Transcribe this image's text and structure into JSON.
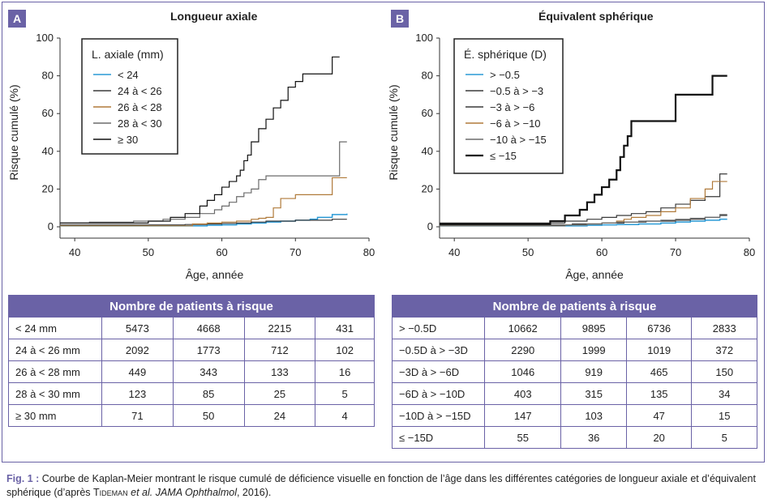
{
  "panels": [
    {
      "letter": "A",
      "title": "Longueur axiale",
      "legend_title": "L. axiale (mm)",
      "table_header": "Nombre de patients à risque",
      "table_rows": [
        {
          "label": "< 24 mm",
          "values": [
            "5473",
            "4668",
            "2215",
            "431"
          ]
        },
        {
          "label": "24 à < 26 mm",
          "values": [
            "2092",
            "1773",
            "712",
            "102"
          ]
        },
        {
          "label": "26 à < 28 mm",
          "values": [
            "449",
            "343",
            "133",
            "16"
          ]
        },
        {
          "label": "28 à < 30 mm",
          "values": [
            "123",
            "85",
            "25",
            "5"
          ]
        },
        {
          "label": "≥ 30 mm",
          "values": [
            "71",
            "50",
            "24",
            "4"
          ]
        }
      ]
    },
    {
      "letter": "B",
      "title": "Équivalent sphérique",
      "legend_title": "É. sphérique (D)",
      "table_header": "Nombre de patients à risque",
      "table_rows": [
        {
          "label": "> −0.5D",
          "values": [
            "10662",
            "9895",
            "6736",
            "2833"
          ]
        },
        {
          "label": "−0.5D à > −3D",
          "values": [
            "2290",
            "1999",
            "1019",
            "372"
          ]
        },
        {
          "label": "−3D à > −6D",
          "values": [
            "1046",
            "919",
            "465",
            "150"
          ]
        },
        {
          "label": "−6D à > −10D",
          "values": [
            "403",
            "315",
            "135",
            "34"
          ]
        },
        {
          "label": "−10D à > −15D",
          "values": [
            "147",
            "103",
            "47",
            "15"
          ]
        },
        {
          "label": "≤ −15D",
          "values": [
            "55",
            "36",
            "20",
            "5"
          ]
        }
      ]
    }
  ],
  "caption": {
    "fig_label": "Fig. 1 :",
    "text_1": " Courbe de Kaplan-Meier montrant le risque cumulé de déficience visuelle en fonction de l’âge dans les différentes catégories de longueur axiale et d’équivalent sphérique (d’après ",
    "author": "Tideman",
    "etal": " et al. JAMA Ophthalmol",
    "text_2": ", 2016)."
  },
  "chart_data": [
    {
      "type": "line",
      "title": "Longueur axiale",
      "xlabel": "Âge, année",
      "ylabel": "Risque cumulé (%)",
      "xlim": [
        38,
        80
      ],
      "ylim": [
        0,
        100
      ],
      "xticks": [
        40,
        50,
        60,
        70,
        80
      ],
      "yticks": [
        0,
        20,
        40,
        60,
        80,
        100
      ],
      "grid": false,
      "legend_position": "top-left",
      "series": [
        {
          "name": "< 24",
          "color": "#2a9ad6",
          "width": 1.5,
          "x": [
            38,
            52,
            55,
            58,
            60,
            62,
            64,
            66,
            68,
            70,
            72,
            73,
            75,
            77
          ],
          "y": [
            0.5,
            0.5,
            0.5,
            0.8,
            1.0,
            1.5,
            2.0,
            2.5,
            3.0,
            3.5,
            4.0,
            5.0,
            6.5,
            7.0
          ]
        },
        {
          "name": "24 à < 26",
          "color": "#3a3a3a",
          "width": 1.2,
          "x": [
            38,
            50,
            55,
            58,
            60,
            62,
            64,
            66,
            68,
            70,
            72,
            75,
            77
          ],
          "y": [
            1.0,
            1.0,
            1.2,
            1.5,
            1.8,
            2.0,
            2.5,
            3.0,
            3.0,
            3.5,
            3.5,
            4.0,
            4.0
          ]
        },
        {
          "name": "26 à < 28",
          "color": "#b07a3a",
          "width": 1.2,
          "x": [
            38,
            54,
            56,
            58,
            60,
            62,
            63,
            64,
            65,
            66,
            67,
            68,
            70,
            72,
            74,
            75,
            77
          ],
          "y": [
            0.5,
            0.5,
            1.5,
            2.0,
            2.5,
            3.0,
            3.0,
            4.0,
            4.5,
            5.0,
            10.0,
            15.0,
            17.0,
            17.0,
            17.0,
            26.0,
            26.0
          ]
        },
        {
          "name": "28 à < 30",
          "color": "#6b6b6b",
          "width": 1.2,
          "x": [
            38,
            42,
            48,
            52,
            55,
            57,
            59,
            60,
            61,
            62,
            63,
            64,
            65,
            66,
            68,
            70,
            72,
            74,
            76,
            77
          ],
          "y": [
            2.0,
            2.5,
            3.0,
            4.0,
            5.0,
            7.0,
            9.0,
            11.0,
            13.0,
            16.0,
            18.0,
            20.0,
            25.0,
            27.0,
            27.0,
            27.0,
            27.0,
            27.0,
            45.0,
            45.0
          ]
        },
        {
          "name": "≥ 30",
          "color": "#111111",
          "width": 1.2,
          "x": [
            38,
            46,
            50,
            53,
            55,
            57,
            58,
            59,
            60,
            61,
            62,
            62.5,
            63,
            63.5,
            64,
            65,
            66,
            67,
            68,
            69,
            70,
            71,
            72,
            73,
            74,
            75,
            76
          ],
          "y": [
            2.0,
            2.0,
            3.0,
            5.0,
            7.0,
            11.0,
            14.0,
            17.0,
            21.0,
            24.0,
            27.0,
            30.0,
            35.0,
            38.0,
            45.0,
            52.0,
            57.0,
            63.0,
            67.0,
            74.0,
            77.0,
            81.0,
            81.0,
            81.0,
            81.0,
            90.0,
            90.0
          ]
        }
      ]
    },
    {
      "type": "line",
      "title": "Équivalent sphérique",
      "xlabel": "Âge, année",
      "ylabel": "Risque cumulé (%)",
      "xlim": [
        38,
        80
      ],
      "ylim": [
        0,
        100
      ],
      "xticks": [
        40,
        50,
        60,
        70,
        80
      ],
      "yticks": [
        0,
        20,
        40,
        60,
        80,
        100
      ],
      "grid": false,
      "legend_position": "top-left",
      "series": [
        {
          "name": "> −0.5",
          "color": "#2a9ad6",
          "width": 1.5,
          "x": [
            38,
            55,
            58,
            60,
            62,
            65,
            68,
            70,
            72,
            74,
            76,
            77
          ],
          "y": [
            0.5,
            0.5,
            0.8,
            1.0,
            1.2,
            1.5,
            2.0,
            2.5,
            3.0,
            3.5,
            4.0,
            4.0
          ]
        },
        {
          "name": "−0.5 à > −3",
          "color": "#3a3a3a",
          "width": 1.2,
          "x": [
            38,
            52,
            56,
            60,
            63,
            66,
            70,
            72,
            74,
            76,
            77
          ],
          "y": [
            1.0,
            1.0,
            1.5,
            2.0,
            2.5,
            3.0,
            3.5,
            4.0,
            5.0,
            6.0,
            6.0
          ]
        },
        {
          "name": "−3 à > −6",
          "color": "#3a3a3a",
          "width": 1.2,
          "x": [
            38,
            48,
            55,
            58,
            60,
            62,
            64,
            66,
            68,
            70,
            72,
            74,
            76,
            77
          ],
          "y": [
            2.0,
            2.0,
            3.0,
            4.0,
            5.0,
            6.0,
            7.0,
            8.0,
            10.0,
            12.0,
            14.0,
            16.0,
            28.0,
            28.0
          ]
        },
        {
          "name": "−6 à > −10",
          "color": "#b07a3a",
          "width": 1.2,
          "x": [
            38,
            52,
            55,
            58,
            60,
            62,
            63,
            64,
            66,
            68,
            70,
            72,
            74,
            75,
            77
          ],
          "y": [
            0.5,
            0.5,
            1.0,
            1.5,
            2.0,
            3.0,
            4.0,
            5.0,
            6.0,
            8.0,
            10.0,
            15.0,
            20.0,
            24.0,
            24.0
          ]
        },
        {
          "name": "−10 à > −15",
          "color": "#6b6b6b",
          "width": 1.2,
          "x": [
            38,
            52,
            55,
            58,
            60,
            62,
            65,
            68,
            70,
            72,
            74,
            76,
            77
          ],
          "y": [
            0.5,
            0.5,
            1.0,
            1.5,
            2.0,
            2.5,
            3.0,
            3.5,
            4.0,
            4.5,
            5.0,
            6.5,
            6.5
          ]
        },
        {
          "name": "≤ −15",
          "color": "#111111",
          "width": 2.2,
          "x": [
            38,
            52,
            53,
            55,
            57,
            58,
            59,
            60,
            61,
            62,
            62.5,
            63,
            63.5,
            64,
            66,
            68,
            69,
            70,
            71,
            72,
            73,
            74,
            75,
            77
          ],
          "y": [
            1.5,
            1.5,
            3.0,
            6.0,
            9.0,
            13.0,
            17.0,
            21.0,
            25.0,
            30.0,
            37.0,
            43.0,
            48.0,
            56.0,
            56.0,
            56.0,
            56.0,
            70.0,
            70.0,
            70.0,
            70.0,
            70.0,
            80.0,
            80.0
          ]
        }
      ]
    }
  ]
}
